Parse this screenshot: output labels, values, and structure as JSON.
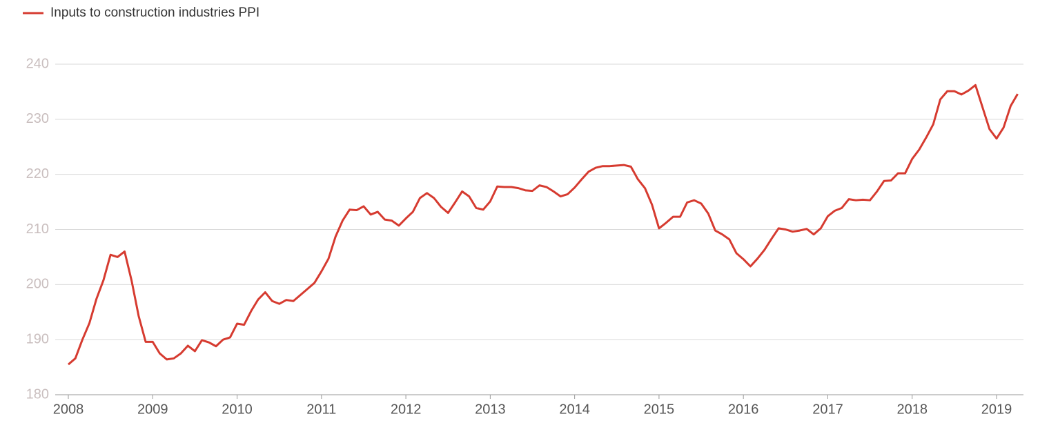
{
  "chart_data": {
    "type": "line",
    "categories": [
      "2008",
      null,
      null,
      null,
      null,
      null,
      null,
      null,
      null,
      null,
      null,
      null,
      "2009",
      null,
      null,
      null,
      null,
      null,
      null,
      null,
      null,
      null,
      null,
      null,
      "2010",
      null,
      null,
      null,
      null,
      null,
      null,
      null,
      null,
      null,
      null,
      null,
      "2011",
      null,
      null,
      null,
      null,
      null,
      null,
      null,
      null,
      null,
      null,
      null,
      "2012",
      null,
      null,
      null,
      null,
      null,
      null,
      null,
      null,
      null,
      null,
      null,
      "2013",
      null,
      null,
      null,
      null,
      null,
      null,
      null,
      null,
      null,
      null,
      null,
      "2014",
      null,
      null,
      null,
      null,
      null,
      null,
      null,
      null,
      null,
      null,
      null,
      "2015",
      null,
      null,
      null,
      null,
      null,
      null,
      null,
      null,
      null,
      null,
      null,
      "2016",
      null,
      null,
      null,
      null,
      null,
      null,
      null,
      null,
      null,
      null,
      null,
      "2017",
      null,
      null,
      null,
      null,
      null,
      null,
      null,
      null,
      null,
      null,
      null,
      "2018",
      null,
      null,
      null,
      null,
      null,
      null,
      null,
      null,
      null,
      null,
      null,
      "2019",
      null,
      null,
      null
    ],
    "series": [
      {
        "name": "Inputs to construction industries PPI",
        "color": "#d63b30",
        "values": [
          185.5,
          186.6,
          190,
          193,
          197.4,
          200.8,
          205.4,
          205,
          206,
          200.7,
          194.3,
          189.6,
          189.6,
          187.5,
          186.4,
          186.6,
          187.5,
          188.9,
          187.9,
          189.9,
          189.5,
          188.8,
          190,
          190.4,
          192.9,
          192.7,
          195.2,
          197.3,
          198.6,
          197,
          196.5,
          197.2,
          197,
          198.1,
          199.2,
          200.3,
          202.4,
          204.7,
          208.7,
          211.6,
          213.6,
          213.5,
          214.2,
          212.7,
          213.2,
          211.8,
          211.6,
          210.7,
          212,
          213.2,
          215.7,
          216.6,
          215.7,
          214.1,
          213,
          214.9,
          216.9,
          216,
          213.9,
          213.6,
          215.1,
          217.8,
          217.7,
          217.7,
          217.5,
          217.1,
          217,
          218,
          217.7,
          216.9,
          216,
          216.4,
          217.6,
          219.1,
          220.5,
          221.2,
          221.5,
          221.5,
          221.6,
          221.7,
          221.4,
          219.1,
          217.5,
          214.5,
          210.2,
          211.2,
          212.3,
          212.3,
          214.9,
          215.3,
          214.7,
          212.9,
          209.8,
          209.1,
          208.2,
          205.7,
          204.6,
          203.3,
          204.7,
          206.3,
          208.3,
          210.2,
          210,
          209.6,
          209.8,
          210.1,
          209.1,
          210.2,
          212.4,
          213.4,
          213.9,
          215.5,
          215.3,
          215.4,
          215.3,
          216.9,
          218.8,
          218.9,
          220.2,
          220.2,
          222.8,
          224.5,
          226.7,
          229.1,
          233.6,
          235.1,
          235.1,
          234.5,
          235.2,
          236.2,
          232.2,
          228.2,
          226.5,
          228.5,
          232.4,
          234.6
        ]
      }
    ],
    "ylim": [
      180,
      240
    ],
    "yticks": [
      180,
      190,
      200,
      210,
      220,
      230,
      240
    ],
    "grid": true,
    "legend": "top-left"
  }
}
